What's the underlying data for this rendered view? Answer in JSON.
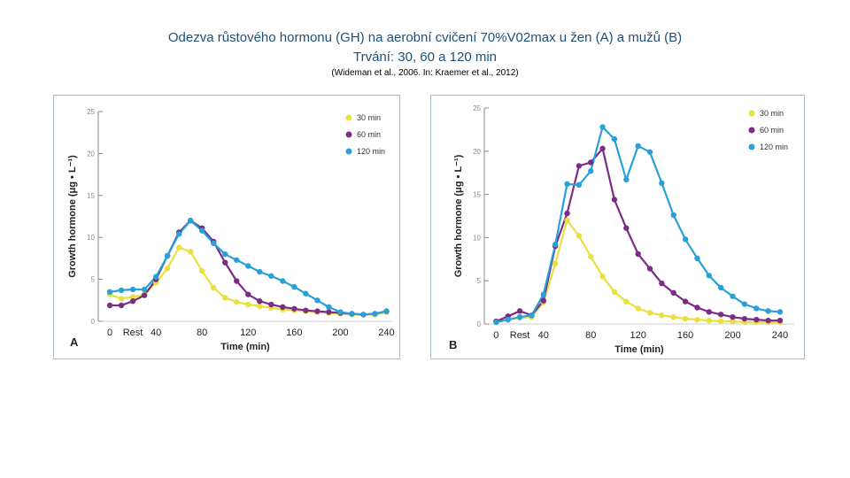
{
  "title": {
    "line1": "Odezva růstového hormonu (GH) na aerobní cvičení 70%V02max u žen (A) a mužů (B)",
    "line2": "Trvání: 30, 60 a 120 min",
    "citation": "(Wideman et al., 2006. In: Kraemer et al., 2012)"
  },
  "colors": {
    "s30": "#e8e040",
    "s60": "#7b2d86",
    "s120": "#2a9fd8",
    "axis": "#8a8a8a",
    "text": "#333333",
    "label": "#222222"
  },
  "chart_data": [
    {
      "type": "line",
      "panel_label": "A",
      "xlabel": "Time (min)",
      "ylabel": "Growth hormone (μg • L⁻¹)",
      "ylim": [
        0,
        25
      ],
      "yticks": [
        0,
        5,
        10,
        15,
        20,
        25
      ],
      "xlim": [
        -10,
        245
      ],
      "xticks": [
        {
          "value": 0,
          "label": "0"
        },
        {
          "value": 20,
          "label": "Rest"
        },
        {
          "value": 40,
          "label": "40"
        },
        {
          "value": 80,
          "label": "80"
        },
        {
          "value": 120,
          "label": "120"
        },
        {
          "value": 160,
          "label": "160"
        },
        {
          "value": 200,
          "label": "200"
        },
        {
          "value": 240,
          "label": "240"
        }
      ],
      "legend_position": "top-right",
      "series": [
        {
          "name": "30 min",
          "color_key": "s30",
          "x": [
            0,
            10,
            20,
            30,
            40,
            50,
            60,
            70,
            80,
            90,
            100,
            110,
            120,
            130,
            140,
            150,
            160,
            170,
            180,
            190,
            200,
            210,
            220,
            230,
            240
          ],
          "y": [
            3.2,
            2.7,
            2.9,
            3.2,
            4.6,
            6.3,
            8.8,
            8.3,
            6.0,
            4.0,
            2.8,
            2.3,
            2.0,
            1.8,
            1.6,
            1.4,
            1.3,
            1.2,
            1.1,
            1.0,
            0.9,
            0.8,
            0.8,
            0.8,
            1.1
          ]
        },
        {
          "name": "60 min",
          "color_key": "s60",
          "x": [
            0,
            10,
            20,
            30,
            40,
            50,
            60,
            70,
            80,
            90,
            100,
            110,
            120,
            130,
            140,
            150,
            160,
            170,
            180,
            190,
            200,
            210,
            220,
            230,
            240
          ],
          "y": [
            1.9,
            1.9,
            2.4,
            3.1,
            5.0,
            7.8,
            10.6,
            12.0,
            11.1,
            9.5,
            7.0,
            4.8,
            3.2,
            2.4,
            2.0,
            1.7,
            1.5,
            1.3,
            1.2,
            1.1,
            1.0,
            0.9,
            0.8,
            0.9,
            1.2
          ]
        },
        {
          "name": "120 min",
          "color_key": "s120",
          "x": [
            0,
            10,
            20,
            30,
            40,
            50,
            60,
            70,
            80,
            90,
            100,
            110,
            120,
            130,
            140,
            150,
            160,
            170,
            180,
            190,
            200,
            210,
            220,
            230,
            240
          ],
          "y": [
            3.5,
            3.7,
            3.8,
            3.8,
            5.3,
            7.8,
            10.4,
            12.0,
            10.8,
            9.3,
            8.0,
            7.3,
            6.6,
            5.9,
            5.4,
            4.8,
            4.1,
            3.3,
            2.5,
            1.7,
            1.1,
            0.9,
            0.8,
            0.9,
            1.2
          ]
        }
      ]
    },
    {
      "type": "line",
      "panel_label": "B",
      "xlabel": "Time (min)",
      "ylabel": "Growth hormone (μg • L⁻¹)",
      "ylim": [
        0,
        25
      ],
      "yticks": [
        0,
        5,
        10,
        15,
        20,
        25
      ],
      "xlim": [
        -10,
        252
      ],
      "xticks": [
        {
          "value": 0,
          "label": "0"
        },
        {
          "value": 20,
          "label": "Rest"
        },
        {
          "value": 40,
          "label": "40"
        },
        {
          "value": 80,
          "label": "80"
        },
        {
          "value": 120,
          "label": "120"
        },
        {
          "value": 160,
          "label": "160"
        },
        {
          "value": 200,
          "label": "200"
        },
        {
          "value": 240,
          "label": "240"
        }
      ],
      "legend_position": "top-right",
      "series": [
        {
          "name": "30 min",
          "color_key": "s30",
          "x": [
            0,
            10,
            20,
            30,
            40,
            50,
            60,
            70,
            80,
            90,
            100,
            110,
            120,
            130,
            140,
            150,
            160,
            170,
            180,
            190,
            200,
            210,
            220,
            230,
            240
          ],
          "y": [
            0.3,
            0.5,
            0.7,
            0.8,
            2.5,
            7.0,
            12.0,
            10.2,
            7.8,
            5.5,
            3.7,
            2.6,
            1.8,
            1.3,
            1.0,
            0.8,
            0.6,
            0.5,
            0.4,
            0.3,
            0.3,
            0.2,
            0.2,
            0.2,
            0.2
          ]
        },
        {
          "name": "60 min",
          "color_key": "s60",
          "x": [
            0,
            10,
            20,
            30,
            40,
            50,
            60,
            70,
            80,
            90,
            100,
            110,
            120,
            130,
            140,
            150,
            160,
            170,
            180,
            190,
            200,
            210,
            220,
            230,
            240
          ],
          "y": [
            0.3,
            0.9,
            1.5,
            1.0,
            2.7,
            9.0,
            12.8,
            18.3,
            18.7,
            20.3,
            14.4,
            11.1,
            8.1,
            6.4,
            4.7,
            3.6,
            2.6,
            1.9,
            1.4,
            1.1,
            0.8,
            0.6,
            0.5,
            0.4,
            0.4
          ]
        },
        {
          "name": "120 min",
          "color_key": "s120",
          "x": [
            0,
            10,
            20,
            30,
            40,
            50,
            60,
            70,
            80,
            90,
            100,
            110,
            120,
            130,
            140,
            150,
            160,
            170,
            180,
            190,
            200,
            210,
            220,
            230,
            240
          ],
          "y": [
            0.2,
            0.5,
            0.8,
            1.0,
            3.4,
            9.2,
            16.2,
            16.1,
            17.7,
            22.8,
            21.4,
            16.7,
            20.6,
            19.9,
            16.3,
            12.6,
            9.8,
            7.6,
            5.6,
            4.2,
            3.2,
            2.3,
            1.8,
            1.5,
            1.4
          ]
        }
      ]
    }
  ]
}
